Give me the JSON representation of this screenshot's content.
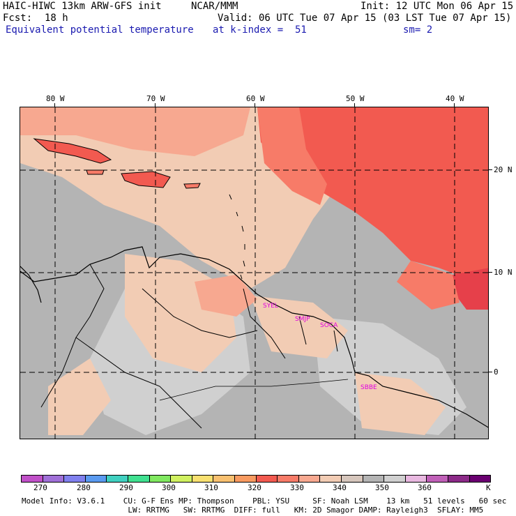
{
  "header": {
    "model": "HAIC-HIWC 13km ARW-GFS init",
    "org": "NCAR/MMM",
    "init": "Init: 12 UTC Mon 06 Apr 15",
    "fcst_label": "Fcst:",
    "fcst_value": "18 h",
    "valid": "Valid: 06 UTC Tue 07 Apr 15 (03 LST Tue 07 Apr 15)",
    "field": "Equivalent potential temperature",
    "level": "at k-index =  51",
    "smoothing": "sm= 2"
  },
  "map": {
    "lon_labels": [
      "80 W",
      "70 W",
      "60 W",
      "50 W",
      "40 W"
    ],
    "lat_labels": [
      "20 N",
      "10 N",
      "0"
    ],
    "stations": [
      "SYEL",
      "SMJP",
      "SOCA",
      "SBBE"
    ],
    "colors": {
      "gray_dark": "#b4b4b4",
      "gray_light": "#d0d0d0",
      "peach": "#f2ccb4",
      "salmon_light": "#f7a890",
      "salmon": "#f77b68",
      "red": "#f25a50",
      "crimson": "#e6404a",
      "station": "#e000e0"
    }
  },
  "colorbar": {
    "labels": [
      "270",
      "280",
      "290",
      "300",
      "310",
      "320",
      "330",
      "340",
      "350",
      "360",
      "K"
    ],
    "colors": [
      "#c050c8",
      "#a070d8",
      "#8080ee",
      "#5a9af0",
      "#40d0c0",
      "#40e090",
      "#80e860",
      "#d0f060",
      "#f8e070",
      "#f8c070",
      "#f89a60",
      "#f25a50",
      "#f77b68",
      "#f7a890",
      "#f2ccb4",
      "#d6c6bc",
      "#b4b4b4",
      "#d0d0d0",
      "#e8b8e0",
      "#c060b8",
      "#8c2a88",
      "#6a0070"
    ]
  },
  "footer": {
    "line1": "Model Info: V3.6.1    CU: G-F Ens MP: Thompson    PBL: YSU     SF: Noah LSM    13 km   51 levels   60 sec",
    "line2": "                       LW: RRTMG   SW: RRTMG  DIFF: full   KM: 2D Smagor DAMP: Rayleigh3  SFLAY: MM5"
  }
}
